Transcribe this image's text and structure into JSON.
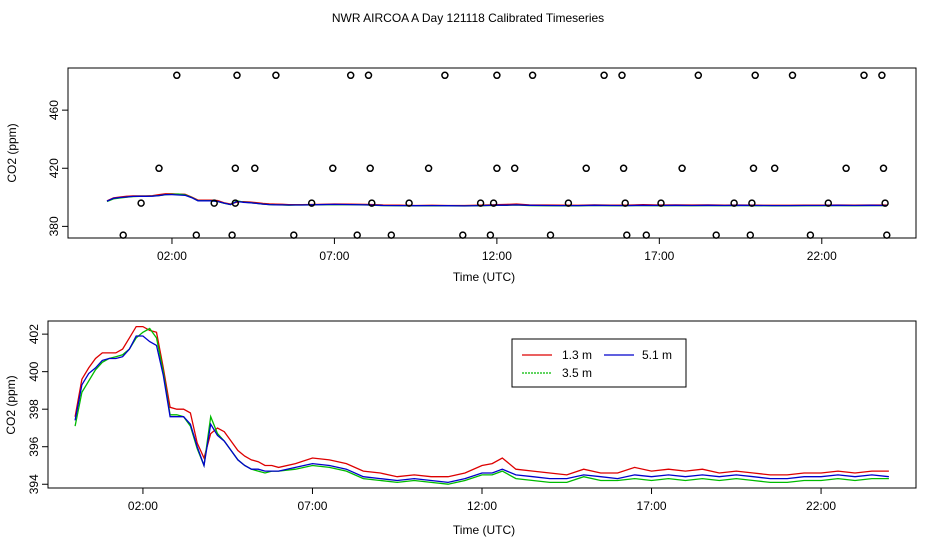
{
  "title": "NWR AIRCOA A  Day 121118  Calibrated Timeseries",
  "chart_data": [
    {
      "type": "scatter",
      "xlabel": "Time (UTC)",
      "ylabel": "CO2 (ppm)",
      "xlim": [
        -1.2,
        24.9
      ],
      "ylim": [
        372,
        489
      ],
      "xticks": [
        {
          "v": 2,
          "label": "02:00"
        },
        {
          "v": 7,
          "label": "07:00"
        },
        {
          "v": 12,
          "label": "12:00"
        },
        {
          "v": 17,
          "label": "17:00"
        },
        {
          "v": 22,
          "label": "22:00"
        }
      ],
      "yticks": [
        {
          "v": 380,
          "label": "380"
        },
        {
          "v": 420,
          "label": "420"
        },
        {
          "v": 460,
          "label": "460"
        }
      ],
      "grid": false,
      "points": [
        {
          "x": 0.5,
          "y": 374
        },
        {
          "x": 1.05,
          "y": 396
        },
        {
          "x": 1.6,
          "y": 420
        },
        {
          "x": 2.15,
          "y": 484
        },
        {
          "x": 2.75,
          "y": 374
        },
        {
          "x": 3.3,
          "y": 396
        },
        {
          "x": 3.85,
          "y": 374
        },
        {
          "x": 3.95,
          "y": 420
        },
        {
          "x": 3.95,
          "y": 396
        },
        {
          "x": 4.0,
          "y": 484
        },
        {
          "x": 4.55,
          "y": 420
        },
        {
          "x": 5.2,
          "y": 484
        },
        {
          "x": 5.75,
          "y": 374
        },
        {
          "x": 6.3,
          "y": 396
        },
        {
          "x": 6.95,
          "y": 420
        },
        {
          "x": 7.5,
          "y": 484
        },
        {
          "x": 7.7,
          "y": 374
        },
        {
          "x": 8.05,
          "y": 484
        },
        {
          "x": 8.1,
          "y": 420
        },
        {
          "x": 8.15,
          "y": 396
        },
        {
          "x": 8.75,
          "y": 374
        },
        {
          "x": 9.3,
          "y": 396
        },
        {
          "x": 9.9,
          "y": 420
        },
        {
          "x": 10.4,
          "y": 484
        },
        {
          "x": 10.95,
          "y": 374
        },
        {
          "x": 11.5,
          "y": 396
        },
        {
          "x": 11.8,
          "y": 374
        },
        {
          "x": 11.9,
          "y": 396
        },
        {
          "x": 12.0,
          "y": 420
        },
        {
          "x": 12.0,
          "y": 484
        },
        {
          "x": 12.55,
          "y": 420
        },
        {
          "x": 13.1,
          "y": 484
        },
        {
          "x": 13.65,
          "y": 374
        },
        {
          "x": 14.2,
          "y": 396
        },
        {
          "x": 14.75,
          "y": 420
        },
        {
          "x": 15.3,
          "y": 484
        },
        {
          "x": 15.85,
          "y": 484
        },
        {
          "x": 15.9,
          "y": 420
        },
        {
          "x": 15.95,
          "y": 396
        },
        {
          "x": 16.0,
          "y": 374
        },
        {
          "x": 16.6,
          "y": 374
        },
        {
          "x": 17.05,
          "y": 396
        },
        {
          "x": 17.7,
          "y": 420
        },
        {
          "x": 18.2,
          "y": 484
        },
        {
          "x": 18.75,
          "y": 374
        },
        {
          "x": 19.3,
          "y": 396
        },
        {
          "x": 19.8,
          "y": 374
        },
        {
          "x": 19.85,
          "y": 396
        },
        {
          "x": 19.9,
          "y": 420
        },
        {
          "x": 19.95,
          "y": 484
        },
        {
          "x": 20.55,
          "y": 420
        },
        {
          "x": 21.1,
          "y": 484
        },
        {
          "x": 21.65,
          "y": 374
        },
        {
          "x": 22.2,
          "y": 396
        },
        {
          "x": 22.75,
          "y": 420
        },
        {
          "x": 23.3,
          "y": 484
        },
        {
          "x": 23.85,
          "y": 484
        },
        {
          "x": 23.9,
          "y": 420
        },
        {
          "x": 23.95,
          "y": 396
        },
        {
          "x": 24.0,
          "y": 374
        }
      ],
      "series": [
        {
          "name": "1.3 m",
          "color": "#dd0000",
          "x": [
            0,
            0.2,
            0.4,
            0.6,
            0.8,
            1.0,
            1.2,
            1.4,
            1.6,
            1.8,
            2.0,
            2.2,
            2.4,
            2.6,
            2.8,
            3.0,
            3.2,
            3.4,
            3.6,
            3.8,
            4.0,
            4.2,
            4.4,
            4.6,
            4.8,
            5.0,
            5.2,
            5.4,
            5.6,
            5.8,
            6.0,
            6.5,
            7.0,
            7.5,
            8.0,
            8.5,
            9.0,
            9.5,
            10.0,
            10.5,
            11.0,
            11.5,
            12.0,
            12.3,
            12.6,
            13.0,
            13.5,
            14.0,
            14.5,
            15.0,
            15.5,
            16.0,
            16.5,
            17.0,
            17.5,
            18.0,
            18.5,
            19.0,
            19.5,
            20.0,
            20.5,
            21.0,
            21.5,
            22.0,
            22.5,
            23.0,
            23.5,
            24.0
          ],
          "y": [
            397.6,
            399.6,
            400.2,
            400.7,
            401.0,
            401.0,
            401.0,
            401.2,
            401.8,
            402.4,
            402.4,
            402.2,
            402.1,
            400.2,
            398.1,
            398.0,
            398.0,
            397.8,
            396.2,
            395.4,
            396.7,
            397.0,
            396.8,
            396.3,
            395.8,
            395.5,
            395.3,
            395.2,
            395.0,
            395.0,
            394.9,
            395.1,
            395.4,
            395.3,
            395.1,
            394.7,
            394.6,
            394.4,
            394.5,
            394.4,
            394.4,
            394.6,
            395.0,
            395.1,
            395.4,
            394.8,
            394.7,
            394.6,
            394.5,
            394.8,
            394.6,
            394.6,
            394.9,
            394.7,
            394.8,
            394.7,
            394.8,
            394.6,
            394.7,
            394.6,
            394.5,
            394.5,
            394.6,
            394.6,
            394.7,
            394.6,
            394.7,
            394.7
          ]
        },
        {
          "name": "3.5 m",
          "color": "#00bb00",
          "x": [
            0,
            0.2,
            0.4,
            0.6,
            0.8,
            1.0,
            1.2,
            1.4,
            1.6,
            1.8,
            2.0,
            2.2,
            2.4,
            2.6,
            2.8,
            3.0,
            3.2,
            3.4,
            3.6,
            3.8,
            4.0,
            4.2,
            4.4,
            4.6,
            4.8,
            5.0,
            5.2,
            5.4,
            5.6,
            5.8,
            6.0,
            6.5,
            7.0,
            7.5,
            8.0,
            8.5,
            9.0,
            9.5,
            10.0,
            10.5,
            11.0,
            11.5,
            12.0,
            12.3,
            12.6,
            13.0,
            13.5,
            14.0,
            14.5,
            15.0,
            15.5,
            16.0,
            16.5,
            17.0,
            17.5,
            18.0,
            18.5,
            19.0,
            19.5,
            20.0,
            20.5,
            21.0,
            21.5,
            22.0,
            22.5,
            23.0,
            23.5,
            24.0
          ],
          "y": [
            397.1,
            398.9,
            399.5,
            400.1,
            400.5,
            400.7,
            400.8,
            400.9,
            401.2,
            401.8,
            402.1,
            402.3,
            401.8,
            400.0,
            397.7,
            397.7,
            397.6,
            397.1,
            395.9,
            395.0,
            397.6,
            396.7,
            396.3,
            395.8,
            395.3,
            395.0,
            394.8,
            394.7,
            394.6,
            394.7,
            394.7,
            394.8,
            395.0,
            394.9,
            394.7,
            394.3,
            394.2,
            394.1,
            394.2,
            394.1,
            394.0,
            394.2,
            394.5,
            394.5,
            394.7,
            394.3,
            394.2,
            394.1,
            394.1,
            394.4,
            394.2,
            394.2,
            394.3,
            394.2,
            394.3,
            394.2,
            394.3,
            394.2,
            394.3,
            394.2,
            394.1,
            394.1,
            394.2,
            394.2,
            394.3,
            394.2,
            394.3,
            394.3
          ]
        },
        {
          "name": "5.1 m",
          "color": "#0000cc",
          "x": [
            0,
            0.2,
            0.4,
            0.6,
            0.8,
            1.0,
            1.2,
            1.4,
            1.6,
            1.8,
            2.0,
            2.2,
            2.4,
            2.6,
            2.8,
            3.0,
            3.2,
            3.4,
            3.6,
            3.8,
            4.0,
            4.2,
            4.4,
            4.6,
            4.8,
            5.0,
            5.2,
            5.4,
            5.6,
            5.8,
            6.0,
            6.5,
            7.0,
            7.5,
            8.0,
            8.5,
            9.0,
            9.5,
            10.0,
            10.5,
            11.0,
            11.5,
            12.0,
            12.3,
            12.6,
            13.0,
            13.5,
            14.0,
            14.5,
            15.0,
            15.5,
            16.0,
            16.5,
            17.0,
            17.5,
            18.0,
            18.5,
            19.0,
            19.5,
            20.0,
            20.5,
            21.0,
            21.5,
            22.0,
            22.5,
            23.0,
            23.5,
            24.0
          ],
          "y": [
            397.4,
            399.3,
            399.9,
            400.2,
            400.6,
            400.7,
            400.7,
            400.8,
            401.2,
            401.9,
            401.9,
            401.6,
            401.4,
            399.8,
            397.6,
            397.6,
            397.6,
            397.2,
            396.0,
            395.0,
            397.2,
            396.6,
            396.3,
            395.8,
            395.3,
            395.0,
            394.8,
            394.8,
            394.7,
            394.7,
            394.7,
            394.9,
            395.1,
            395.0,
            394.8,
            394.4,
            394.3,
            394.2,
            394.3,
            394.2,
            394.1,
            394.3,
            394.6,
            394.6,
            394.8,
            394.5,
            394.4,
            394.3,
            394.3,
            394.5,
            394.4,
            394.3,
            394.5,
            394.4,
            394.5,
            394.4,
            394.5,
            394.4,
            394.5,
            394.4,
            394.3,
            394.3,
            394.4,
            394.4,
            394.5,
            394.4,
            394.5,
            394.4
          ]
        }
      ]
    },
    {
      "type": "line",
      "xlabel": "Time (UTC)",
      "ylabel": "CO2 (ppm)",
      "xlim": [
        -0.8,
        24.8
      ],
      "ylim": [
        393.8,
        402.7
      ],
      "xticks": [
        {
          "v": 2,
          "label": "02:00"
        },
        {
          "v": 7,
          "label": "07:00"
        },
        {
          "v": 12,
          "label": "12:00"
        },
        {
          "v": 17,
          "label": "17:00"
        },
        {
          "v": 22,
          "label": "22:00"
        }
      ],
      "yticks": [
        {
          "v": 394,
          "label": "394"
        },
        {
          "v": 396,
          "label": "396"
        },
        {
          "v": 398,
          "label": "398"
        },
        {
          "v": 400,
          "label": "400"
        },
        {
          "v": 402,
          "label": "402"
        }
      ],
      "grid": false,
      "legend": {
        "position": "top-center",
        "entries": [
          {
            "label": "1.3 m",
            "color": "#dd0000"
          },
          {
            "label": "5.1 m",
            "color": "#0000cc"
          },
          {
            "label": "3.5 m",
            "color": "#00bb00"
          }
        ]
      },
      "series_ref": "same as panel 1 series"
    }
  ]
}
